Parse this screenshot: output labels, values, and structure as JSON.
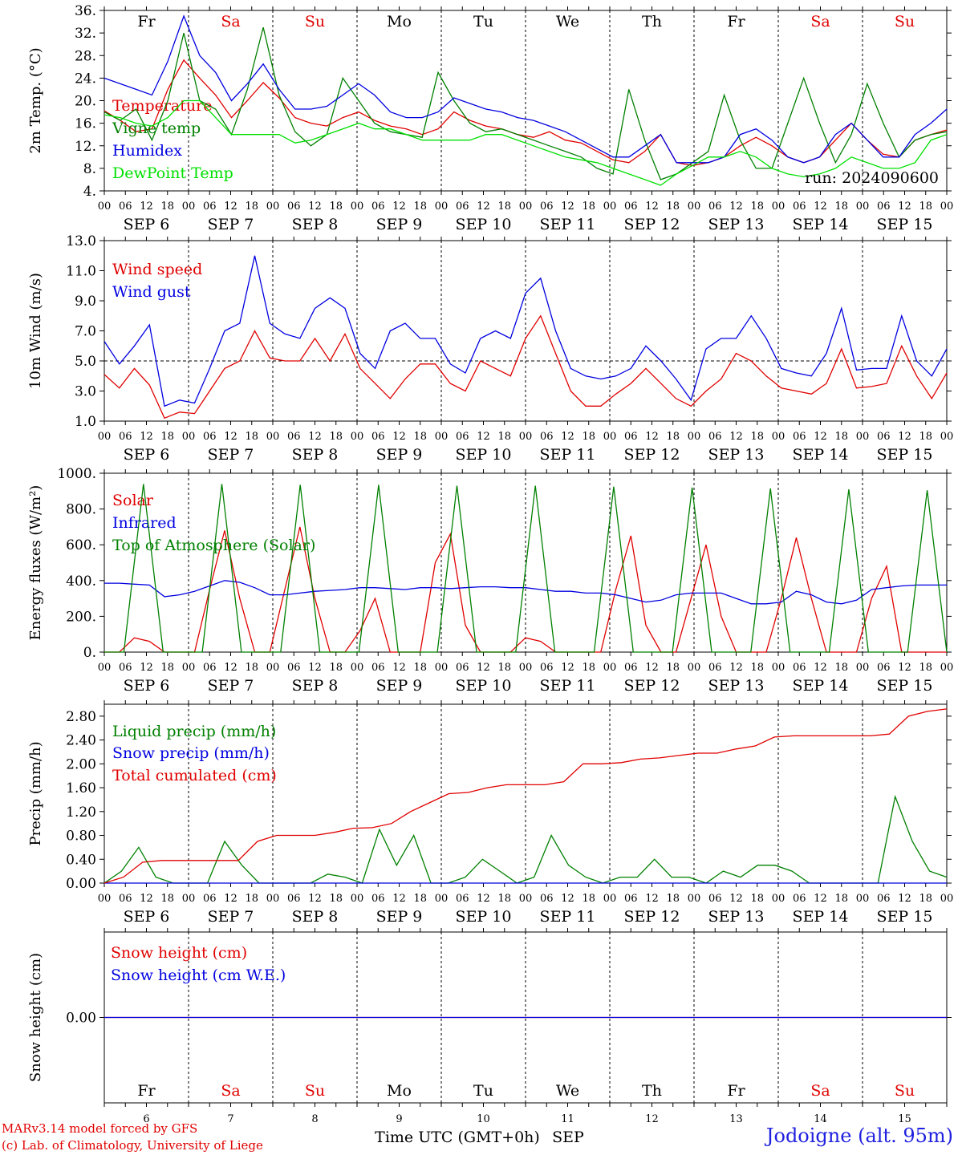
{
  "run_label": "run: 2024090600",
  "x_axis": {
    "hour_ticks": [
      "00",
      "06",
      "12",
      "18"
    ],
    "days": [
      "SEP 6",
      "SEP 7",
      "SEP 8",
      "SEP 9",
      "SEP 10",
      "SEP 11",
      "SEP 12",
      "SEP 13",
      "SEP 14",
      "SEP 15"
    ],
    "weekdays": [
      "Fr",
      "Sa",
      "Su",
      "Mo",
      "Tu",
      "We",
      "Th",
      "Fr",
      "Sa",
      "Su"
    ],
    "weekday_colors": [
      "#000000",
      "#e00000",
      "#e00000",
      "#000000",
      "#000000",
      "#000000",
      "#000000",
      "#000000",
      "#e00000",
      "#e00000"
    ],
    "day_numbers": [
      "6",
      "7",
      "8",
      "9",
      "10",
      "11",
      "12",
      "13",
      "14",
      "15"
    ],
    "bottom_label": "Time UTC (GMT+0h)",
    "month_label": "SEP"
  },
  "footer": {
    "credit_line1": "MARv3.14 model forced by GFS",
    "credit_line2": "(c) Lab. of Climatology, University of Liege",
    "station": "Jodoigne (alt. 95m)"
  },
  "chart_data": [
    {
      "type": "line",
      "ylabel": "2m Temp. (°C)",
      "ylim": [
        4,
        36
      ],
      "yticks": [
        "4.",
        "8.",
        "12.",
        "16.",
        "20.",
        "24.",
        "28.",
        "32.",
        "36."
      ],
      "time_step_hours": 6,
      "series": [
        {
          "name": "Temperature",
          "color": "#e00000",
          "values": [
            18.2,
            16.5,
            14.5,
            15,
            22,
            27.2,
            24,
            21,
            17,
            20,
            23.2,
            20.5,
            17,
            16,
            15.5,
            17,
            18,
            16.5,
            15.5,
            15,
            14,
            15,
            18,
            16.5,
            15.5,
            15,
            14,
            13.5,
            14.5,
            13,
            12.5,
            11,
            9.5,
            9,
            11,
            14,
            9,
            8.5,
            9,
            10,
            12,
            13.5,
            12,
            10,
            9,
            10,
            13,
            16,
            13,
            10.5,
            10,
            13,
            14,
            14.8
          ]
        },
        {
          "name": "Vigne temp",
          "color": "#008000",
          "values": [
            18,
            16.5,
            18.5,
            13,
            20,
            32,
            20,
            18.5,
            14,
            22,
            33,
            21,
            14.5,
            12,
            14,
            24,
            20,
            16,
            14.5,
            14,
            13.5,
            25,
            20,
            16,
            14.5,
            15,
            14,
            13,
            12,
            11,
            10,
            8,
            7,
            22,
            13,
            6,
            7,
            9,
            11,
            21,
            13,
            8,
            8,
            16,
            24,
            16,
            9,
            14,
            23,
            16,
            10,
            13,
            14,
            14.5
          ]
        },
        {
          "name": "Humidex",
          "color": "#0000e0",
          "values": [
            24,
            23,
            22,
            21,
            27,
            35,
            28,
            25,
            20,
            23,
            26.5,
            22,
            18.5,
            18.5,
            19,
            21,
            23,
            21,
            18,
            17,
            17,
            18,
            20.5,
            19.5,
            18.5,
            18,
            17,
            16.5,
            15.5,
            14.5,
            13,
            11.5,
            10,
            10,
            12,
            14,
            9,
            9,
            9,
            10,
            14,
            15,
            13,
            10,
            9,
            10,
            14,
            16,
            13,
            10,
            10,
            14,
            16,
            18.5
          ]
        },
        {
          "name": "DewPoint Temp",
          "color": "#00e000",
          "values": [
            17.5,
            17,
            16,
            15.5,
            17,
            20,
            20,
            17,
            14,
            14,
            14,
            14,
            12.5,
            13,
            14,
            15,
            16,
            15,
            15,
            14,
            13,
            13,
            13,
            13,
            14,
            14,
            13,
            12,
            11,
            10,
            9.5,
            9,
            8,
            7,
            6,
            5,
            7,
            8.5,
            10,
            10,
            11,
            10,
            8,
            7,
            6.5,
            7,
            8,
            10,
            9,
            8,
            8,
            9,
            13,
            14
          ]
        }
      ],
      "hline": null
    },
    {
      "type": "line",
      "ylabel": "10m Wind (m/s)",
      "ylim": [
        1,
        13
      ],
      "yticks": [
        "1.0",
        "3.0",
        "5.0",
        "7.0",
        "9.0",
        "11.0",
        "13.0"
      ],
      "time_step_hours": 6,
      "series": [
        {
          "name": "Wind speed",
          "color": "#e00000",
          "values": [
            4.1,
            3.2,
            4.5,
            3.4,
            1.2,
            1.6,
            1.5,
            3,
            4.5,
            5,
            7,
            5.2,
            5,
            5,
            6.5,
            5,
            6.8,
            4.5,
            3.5,
            2.5,
            3.8,
            4.8,
            4.8,
            3.5,
            3,
            5,
            4.5,
            4,
            6.5,
            8,
            5.5,
            3,
            2,
            2,
            2.8,
            3.5,
            4.5,
            3.5,
            2.5,
            2,
            3,
            3.8,
            5.5,
            5,
            4,
            3.2,
            3,
            2.8,
            3.5,
            5.8,
            3.2,
            3.3,
            3.5,
            6,
            4,
            2.5,
            4.2
          ]
        },
        {
          "name": "Wind gust",
          "color": "#0000e0",
          "values": [
            6.3,
            4.8,
            6,
            7.4,
            2,
            2.4,
            2.2,
            4.5,
            7,
            7.5,
            12,
            7.5,
            6.8,
            6.5,
            8.5,
            9.2,
            8.5,
            5.5,
            4.5,
            7,
            7.5,
            6.5,
            6.5,
            4.8,
            4.2,
            6.5,
            7,
            6.5,
            9.5,
            10.5,
            7,
            4.5,
            4,
            3.8,
            4,
            4.5,
            6,
            5,
            3.8,
            2.4,
            5.8,
            6.5,
            6.5,
            8,
            6.5,
            4.5,
            4.2,
            4,
            5.5,
            8.5,
            4.4,
            4.5,
            4.5,
            8,
            5,
            4,
            5.8
          ]
        }
      ],
      "hline": 5
    },
    {
      "type": "line",
      "ylabel": "Energy fluxes (W/m²)",
      "ylim": [
        0,
        1000
      ],
      "yticks": [
        "0.",
        "200.",
        "400.",
        "600.",
        "800.",
        "1000."
      ],
      "time_step_hours": 6,
      "series": [
        {
          "name": "Solar",
          "color": "#e00000",
          "values": [
            0,
            0,
            80,
            60,
            0,
            0,
            0,
            350,
            680,
            300,
            0,
            0,
            350,
            700,
            300,
            0,
            0,
            120,
            300,
            0,
            0,
            0,
            500,
            660,
            150,
            0,
            0,
            0,
            80,
            60,
            0,
            0,
            0,
            0,
            350,
            650,
            150,
            0,
            0,
            300,
            600,
            200,
            0,
            0,
            0,
            300,
            640,
            300,
            0,
            0,
            0,
            300,
            480,
            0,
            0,
            0,
            0
          ]
        },
        {
          "name": "Infrared",
          "color": "#0000e0",
          "values": [
            385,
            385,
            380,
            375,
            310,
            320,
            340,
            370,
            400,
            390,
            360,
            320,
            320,
            330,
            340,
            345,
            350,
            360,
            360,
            355,
            350,
            360,
            360,
            355,
            360,
            365,
            365,
            360,
            360,
            350,
            340,
            340,
            330,
            330,
            320,
            300,
            280,
            290,
            320,
            330,
            330,
            330,
            300,
            270,
            270,
            280,
            340,
            320,
            280,
            270,
            290,
            350,
            360,
            370,
            375,
            375,
            375
          ]
        },
        {
          "name": "Top of Atmosphere (Solar)",
          "color": "#008000",
          "values": [
            0,
            0,
            940,
            0,
            0,
            0,
            940,
            0,
            0,
            0,
            935,
            0,
            0,
            0,
            935,
            0,
            0,
            0,
            930,
            0,
            0,
            0,
            930,
            0,
            0,
            0,
            925,
            0,
            0,
            0,
            920,
            0,
            0,
            0,
            915,
            0,
            0,
            0,
            910,
            0,
            0,
            0,
            905,
            0
          ]
        }
      ],
      "hline": null
    },
    {
      "type": "line",
      "ylabel": "Precip (mm/h)",
      "ylim": [
        0,
        3.0
      ],
      "yticks": [
        "0.00",
        "0.40",
        "0.80",
        "1.20",
        "1.60",
        "2.00",
        "2.40",
        "2.80"
      ],
      "time_step_hours": 6,
      "series": [
        {
          "name": "Liquid precip (mm/h)",
          "color": "#008000",
          "values": [
            0,
            0.2,
            0.6,
            0.1,
            0,
            0,
            0,
            0.7,
            0.3,
            0,
            0,
            0,
            0,
            0.15,
            0.1,
            0,
            0.9,
            0.3,
            0.8,
            0,
            0,
            0.1,
            0.4,
            0.2,
            0,
            0.1,
            0.8,
            0.3,
            0.1,
            0,
            0.1,
            0.1,
            0.4,
            0.1,
            0.1,
            0,
            0.2,
            0.1,
            0.3,
            0.3,
            0.2,
            0,
            0,
            0,
            0,
            0,
            1.45,
            0.7,
            0.2,
            0.1
          ]
        },
        {
          "name": "Snow precip (mm/h)",
          "color": "#0000e0",
          "values": [
            0,
            0,
            0,
            0,
            0,
            0,
            0,
            0,
            0,
            0,
            0,
            0,
            0,
            0,
            0,
            0,
            0,
            0,
            0,
            0,
            0,
            0,
            0,
            0,
            0,
            0,
            0,
            0,
            0,
            0,
            0,
            0,
            0,
            0,
            0,
            0,
            0,
            0,
            0,
            0,
            0,
            0
          ]
        },
        {
          "name": "Total cumulated (cm)",
          "color": "#e00000",
          "values": [
            0,
            0.1,
            0.35,
            0.38,
            0.38,
            0.38,
            0.38,
            0.38,
            0.7,
            0.8,
            0.8,
            0.8,
            0.85,
            0.92,
            0.93,
            1.0,
            1.2,
            1.35,
            1.5,
            1.52,
            1.6,
            1.65,
            1.65,
            1.65,
            1.7,
            2.0,
            2.0,
            2.02,
            2.08,
            2.1,
            2.14,
            2.18,
            2.18,
            2.25,
            2.3,
            2.45,
            2.47,
            2.47,
            2.47,
            2.47,
            2.47,
            2.5,
            2.8,
            2.88,
            2.92
          ]
        }
      ],
      "hline": null
    },
    {
      "type": "line",
      "ylabel": "Snow height (cm)",
      "ylim": [
        -1,
        1
      ],
      "yticks": [
        "0.00"
      ],
      "time_step_hours": 6,
      "series": [
        {
          "name": "Snow height (cm)",
          "color": "#e00000",
          "values": [
            0,
            0
          ]
        },
        {
          "name": "Snow height (cm W.E.)",
          "color": "#0000e0",
          "values": [
            0,
            0
          ]
        }
      ],
      "hline": null
    }
  ]
}
